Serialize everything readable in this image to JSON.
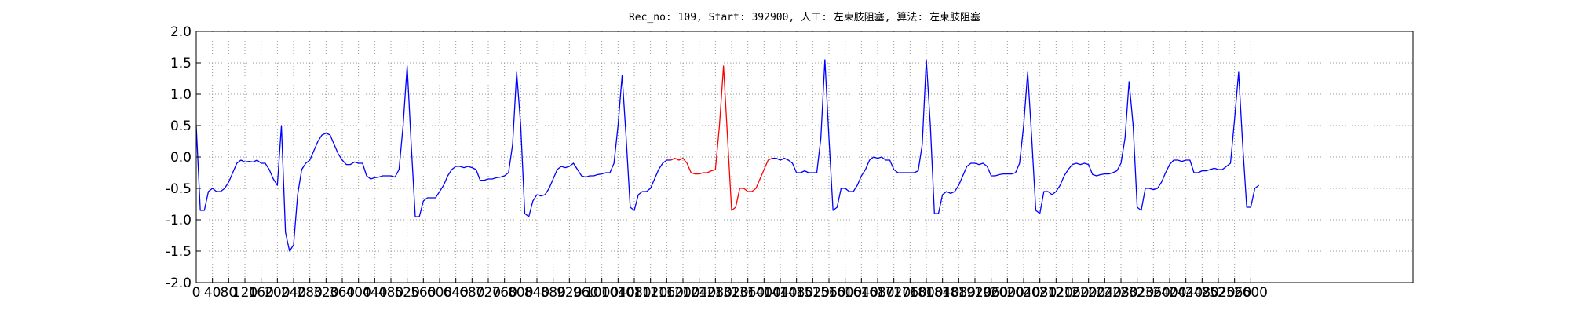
{
  "chart_data": {
    "type": "line",
    "title": "Rec_no: 109, Start: 392900, 人工: 左束肢阻塞, 算法: 左束肢阻塞",
    "x": [
      0,
      10,
      20,
      30,
      40,
      50,
      60,
      70,
      80,
      90,
      100,
      110,
      120,
      130,
      140,
      150,
      160,
      170,
      180,
      190,
      200,
      210,
      220,
      230,
      240,
      250,
      260,
      270,
      280,
      290,
      300,
      310,
      320,
      330,
      340,
      350,
      360,
      370,
      380,
      390,
      400,
      410,
      420,
      430,
      440,
      450,
      460,
      470,
      480,
      490,
      500,
      510,
      520,
      530,
      540,
      550,
      560,
      570,
      580,
      590,
      600,
      610,
      620,
      630,
      640,
      650,
      660,
      670,
      680,
      690,
      700,
      710,
      720,
      730,
      740,
      750,
      760,
      770,
      780,
      790,
      800,
      810,
      820,
      830,
      840,
      850,
      860,
      870,
      880,
      890,
      900,
      910,
      920,
      930,
      940,
      950,
      960,
      970,
      980,
      990,
      1000,
      1010,
      1020,
      1030,
      1040,
      1050,
      1060,
      1070,
      1080,
      1090,
      1100,
      1110,
      1120,
      1130,
      1140,
      1150,
      1160,
      1170,
      1180,
      1190,
      1200,
      1210,
      1220,
      1230,
      1240,
      1250,
      1260,
      1270,
      1280,
      1290,
      1300,
      1310,
      1320,
      1330,
      1340,
      1350,
      1360,
      1370,
      1380,
      1390,
      1400,
      1410,
      1420,
      1430,
      1440,
      1450,
      1460,
      1470,
      1480,
      1490,
      1500,
      1510,
      1520,
      1530,
      1540,
      1550,
      1560,
      1570,
      1580,
      1590,
      1600,
      1610,
      1620,
      1630,
      1640,
      1650,
      1660,
      1670,
      1680,
      1690,
      1700,
      1710,
      1720,
      1730,
      1740,
      1750,
      1760,
      1770,
      1780,
      1790,
      1800,
      1810,
      1820,
      1830,
      1840,
      1850,
      1860,
      1870,
      1880,
      1890,
      1900,
      1910,
      1920,
      1930,
      1940,
      1950,
      1960,
      1970,
      1980,
      1990,
      2000,
      2010,
      2020,
      2030,
      2040,
      2050,
      2060,
      2070,
      2080,
      2090,
      2100,
      2110,
      2120,
      2130,
      2140,
      2150,
      2160,
      2170,
      2180,
      2190,
      2200,
      2210,
      2220,
      2230,
      2240,
      2250,
      2260,
      2270,
      2280,
      2290,
      2300,
      2310,
      2320,
      2330,
      2340,
      2350,
      2360,
      2370,
      2380,
      2390,
      2400,
      2410,
      2420,
      2430,
      2440,
      2450,
      2460,
      2470,
      2480,
      2490,
      2500,
      2510,
      2520,
      2530,
      2540,
      2550,
      2560,
      2570,
      2580,
      2590,
      2600,
      2610,
      2620
    ],
    "series": [
      {
        "color": "#0000ff",
        "values": [
          0.5,
          -0.85,
          -0.85,
          -0.55,
          -0.5,
          -0.55,
          -0.55,
          -0.5,
          -0.4,
          -0.25,
          -0.1,
          -0.05,
          -0.08,
          -0.07,
          -0.08,
          -0.05,
          -0.1,
          -0.1,
          -0.2,
          -0.35,
          -0.45,
          0.5,
          -1.2,
          -1.5,
          -1.4,
          -0.6,
          -0.2,
          -0.1,
          -0.05,
          0.1,
          0.25,
          0.35,
          0.38,
          0.35,
          0.2,
          0.05,
          -0.05,
          -0.12,
          -0.12,
          -0.08,
          -0.1,
          -0.1,
          -0.3,
          -0.35,
          -0.33,
          -0.32,
          -0.3,
          -0.3,
          -0.3,
          -0.32,
          -0.2,
          0.5,
          1.45,
          0.2,
          -0.95,
          -0.95,
          -0.7,
          -0.65,
          -0.65,
          -0.65,
          -0.55,
          -0.45,
          -0.3,
          -0.2,
          -0.15,
          -0.15,
          -0.17,
          -0.15,
          -0.17,
          -0.2,
          -0.37,
          -0.37,
          -0.35,
          -0.35,
          -0.33,
          -0.32,
          -0.3,
          -0.25,
          0.2,
          1.35,
          0.5,
          -0.9,
          -0.95,
          -0.7,
          -0.6,
          -0.62,
          -0.6,
          -0.5,
          -0.35,
          -0.2,
          -0.15,
          -0.17,
          -0.15,
          -0.1,
          -0.2,
          -0.3,
          -0.32,
          -0.3,
          -0.3,
          -0.28,
          -0.27,
          -0.25,
          -0.25,
          -0.1,
          0.5,
          1.3,
          0.3,
          -0.8,
          -0.85,
          -0.6,
          -0.55,
          -0.55,
          -0.5,
          -0.35,
          -0.2,
          -0.1,
          -0.05,
          -0.05,
          null,
          null,
          null,
          null,
          null,
          null,
          null,
          null,
          null,
          null,
          null,
          null,
          null,
          null,
          null,
          null,
          null,
          null,
          null,
          null,
          null,
          null,
          null,
          null,
          -0.02,
          -0.02,
          -0.05,
          -0.02,
          -0.05,
          -0.1,
          -0.25,
          -0.25,
          -0.22,
          -0.25,
          -0.25,
          -0.25,
          0.3,
          1.55,
          0.3,
          -0.85,
          -0.8,
          -0.5,
          -0.5,
          -0.55,
          -0.55,
          -0.45,
          -0.3,
          -0.2,
          -0.05,
          0.0,
          -0.02,
          0.0,
          -0.05,
          -0.05,
          -0.2,
          -0.25,
          -0.25,
          -0.25,
          -0.25,
          -0.25,
          -0.22,
          0.2,
          1.55,
          0.5,
          -0.9,
          -0.9,
          -0.6,
          -0.55,
          -0.58,
          -0.55,
          -0.45,
          -0.3,
          -0.15,
          -0.1,
          -0.1,
          -0.12,
          -0.1,
          -0.15,
          -0.3,
          -0.3,
          -0.28,
          -0.27,
          -0.27,
          -0.27,
          -0.25,
          -0.1,
          0.5,
          1.35,
          0.3,
          -0.85,
          -0.9,
          -0.55,
          -0.55,
          -0.6,
          -0.55,
          -0.45,
          -0.3,
          -0.2,
          -0.12,
          -0.1,
          -0.12,
          -0.1,
          -0.12,
          -0.28,
          -0.3,
          -0.28,
          -0.27,
          -0.27,
          -0.25,
          -0.22,
          -0.1,
          0.3,
          1.2,
          0.5,
          -0.8,
          -0.85,
          -0.5,
          -0.5,
          -0.52,
          -0.5,
          -0.4,
          -0.25,
          -0.12,
          -0.05,
          -0.05,
          -0.07,
          -0.05,
          -0.05,
          -0.25,
          -0.25,
          -0.22,
          -0.22,
          -0.2,
          -0.18,
          -0.2,
          -0.2,
          -0.15,
          -0.1,
          0.6,
          1.35,
          0.2,
          -0.8,
          -0.8,
          -0.5,
          -0.45
        ]
      },
      {
        "color": "#ff0000",
        "values": [
          null,
          null,
          null,
          null,
          null,
          null,
          null,
          null,
          null,
          null,
          null,
          null,
          null,
          null,
          null,
          null,
          null,
          null,
          null,
          null,
          null,
          null,
          null,
          null,
          null,
          null,
          null,
          null,
          null,
          null,
          null,
          null,
          null,
          null,
          null,
          null,
          null,
          null,
          null,
          null,
          null,
          null,
          null,
          null,
          null,
          null,
          null,
          null,
          null,
          null,
          null,
          null,
          null,
          null,
          null,
          null,
          null,
          null,
          null,
          null,
          null,
          null,
          null,
          null,
          null,
          null,
          null,
          null,
          null,
          null,
          null,
          null,
          null,
          null,
          null,
          null,
          null,
          null,
          null,
          null,
          null,
          null,
          null,
          null,
          null,
          null,
          null,
          null,
          null,
          null,
          null,
          null,
          null,
          null,
          null,
          null,
          null,
          null,
          null,
          null,
          null,
          null,
          null,
          null,
          null,
          null,
          null,
          null,
          null,
          null,
          null,
          null,
          null,
          null,
          null,
          null,
          null,
          -0.05,
          -0.02,
          -0.05,
          -0.02,
          -0.1,
          -0.25,
          -0.27,
          -0.27,
          -0.25,
          -0.25,
          -0.22,
          -0.2,
          0.5,
          1.45,
          0.3,
          -0.85,
          -0.8,
          -0.5,
          -0.5,
          -0.55,
          -0.55,
          -0.5,
          -0.35,
          -0.2,
          -0.05,
          -0.02,
          null,
          null,
          null,
          null,
          null,
          null,
          null,
          null,
          null,
          null,
          null,
          null,
          null,
          null,
          null,
          null,
          null,
          null,
          null,
          null,
          null,
          null,
          null,
          null,
          null,
          null,
          null,
          null,
          null,
          null,
          null,
          null,
          null,
          null,
          null,
          null,
          null,
          null,
          null,
          null,
          null,
          null,
          null,
          null,
          null,
          null,
          null,
          null,
          null,
          null,
          null,
          null,
          null,
          null,
          null,
          null,
          null,
          null,
          null,
          null,
          null,
          null,
          null,
          null,
          null,
          null,
          null,
          null,
          null,
          null,
          null,
          null,
          null,
          null,
          null,
          null,
          null,
          null,
          null,
          null,
          null,
          null,
          null,
          null,
          null,
          null,
          null,
          null,
          null,
          null,
          null,
          null,
          null,
          null,
          null,
          null,
          null,
          null,
          null,
          null,
          null,
          null,
          null,
          null,
          null,
          null,
          null,
          null,
          null,
          null,
          null,
          null,
          null,
          null,
          null,
          null,
          null,
          null,
          null,
          null
        ]
      }
    ],
    "xlim": [
      0,
      3000
    ],
    "xticks": [
      0,
      40,
      80,
      120,
      160,
      200,
      240,
      280,
      320,
      360,
      400,
      440,
      480,
      520,
      560,
      600,
      640,
      680,
      720,
      760,
      800,
      840,
      880,
      920,
      960,
      1000,
      1040,
      1080,
      1120,
      1160,
      1200,
      1240,
      1280,
      1320,
      1360,
      1400,
      1440,
      1480,
      1520,
      1560,
      1600,
      1640,
      1680,
      1720,
      1760,
      1800,
      1840,
      1880,
      1920,
      1960,
      2000,
      2040,
      2080,
      2120,
      2160,
      2200,
      2240,
      2280,
      2320,
      2360,
      2400,
      2440,
      2480,
      2520,
      2560,
      2600
    ],
    "ylim": [
      -2,
      2
    ],
    "yticks": [
      {
        "value": -2,
        "label": "-2.0"
      },
      -1.5,
      {
        "value": -1,
        "label": "-1.0"
      },
      -0.5,
      {
        "value": 0,
        "label": "0.0"
      },
      0.5,
      {
        "value": 1,
        "label": "1.0"
      },
      1.5,
      {
        "value": 2,
        "label": "2.0"
      }
    ],
    "grid": true
  }
}
